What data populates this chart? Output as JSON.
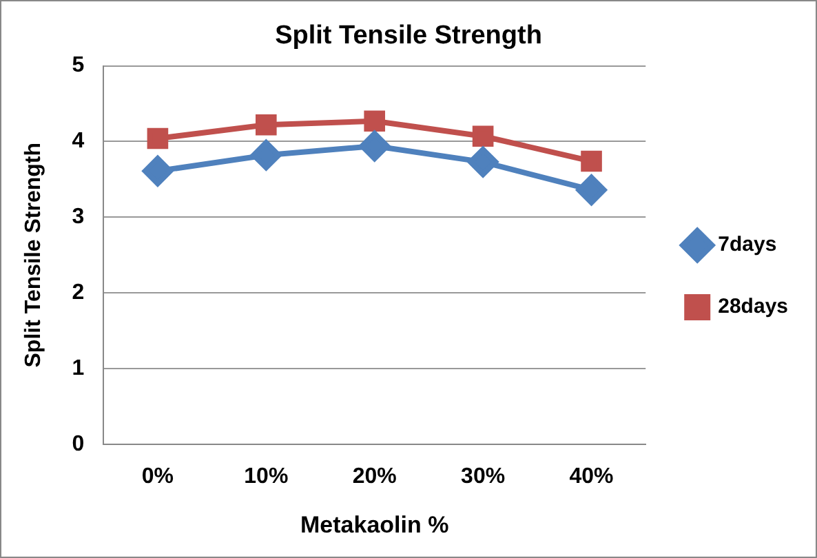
{
  "chart_data": {
    "type": "line",
    "title": "Split Tensile Strength",
    "xlabel": "Metakaolin %",
    "ylabel": "Split Tensile Strength",
    "categories": [
      "0%",
      "10%",
      "20%",
      "30%",
      "40%"
    ],
    "series": [
      {
        "name": "7days",
        "color": "#4f81bd",
        "marker": "diamond",
        "values": [
          3.61,
          3.82,
          3.94,
          3.73,
          3.36
        ]
      },
      {
        "name": "28days",
        "color": "#c0504d",
        "marker": "square",
        "values": [
          4.04,
          4.22,
          4.27,
          4.07,
          3.74
        ]
      }
    ],
    "ylim": [
      0,
      5
    ],
    "yticks": [
      0,
      1,
      2,
      3,
      4,
      5
    ],
    "grid": "y",
    "legend": "right",
    "line_style": "solid"
  }
}
